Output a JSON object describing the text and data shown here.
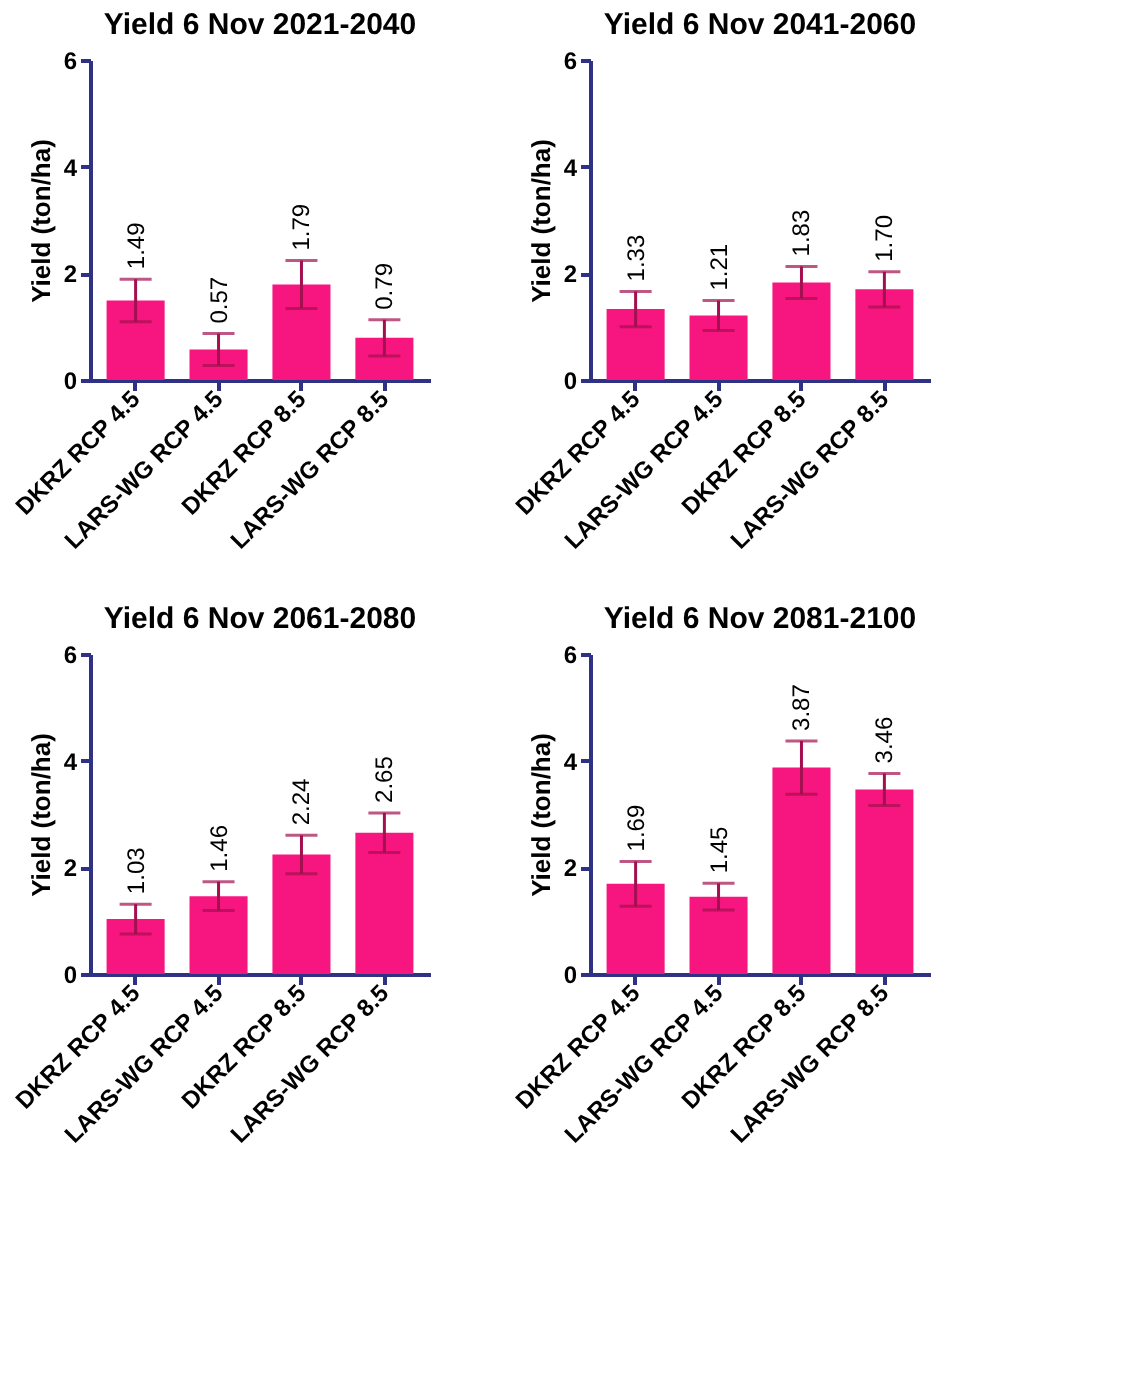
{
  "chart_data": [
    {
      "type": "bar",
      "title": "Yield 6 Nov 2021-2040",
      "ylabel": "Yield (ton/ha)",
      "categories": [
        "DKRZ RCP 4.5",
        "LARS-WG RCP 4.5",
        "DKRZ RCP 8.5",
        "LARS-WG RCP 8.5"
      ],
      "values": [
        1.49,
        0.57,
        1.79,
        0.79
      ],
      "value_labels": [
        "1.49",
        "0.57",
        "1.79",
        "0.79"
      ],
      "errors": [
        0.4,
        0.3,
        0.45,
        0.34
      ],
      "color": "#f7167f",
      "ylim": [
        0,
        6
      ],
      "yticks": [
        0,
        2,
        4,
        6
      ],
      "grid": false
    },
    {
      "type": "bar",
      "title": "Yield 6 Nov 2041-2060",
      "ylabel": "Yield (ton/ha)",
      "categories": [
        "DKRZ RCP 4.5",
        "LARS-WG RCP 4.5",
        "DKRZ RCP 8.5",
        "LARS-WG RCP 8.5"
      ],
      "values": [
        1.33,
        1.21,
        1.83,
        1.7
      ],
      "value_labels": [
        "1.33",
        "1.21",
        "1.83",
        "1.70"
      ],
      "errors": [
        0.33,
        0.28,
        0.3,
        0.33
      ],
      "color": "#f7167f",
      "ylim": [
        0,
        6
      ],
      "yticks": [
        0,
        2,
        4,
        6
      ],
      "grid": false
    },
    {
      "type": "bar",
      "title": "Yield 6 Nov 2061-2080",
      "ylabel": "Yield (ton/ha)",
      "categories": [
        "DKRZ RCP 4.5",
        "LARS-WG RCP 4.5",
        "DKRZ RCP 8.5",
        "LARS-WG RCP 8.5"
      ],
      "values": [
        1.03,
        1.46,
        2.24,
        2.65
      ],
      "value_labels": [
        "1.03",
        "1.46",
        "2.24",
        "2.65"
      ],
      "errors": [
        0.28,
        0.27,
        0.36,
        0.37
      ],
      "color": "#f7167f",
      "ylim": [
        0,
        6
      ],
      "yticks": [
        0,
        2,
        4,
        6
      ],
      "grid": false
    },
    {
      "type": "bar",
      "title": "Yield 6 Nov 2081-2100",
      "ylabel": "Yield (ton/ha)",
      "categories": [
        "DKRZ RCP 4.5",
        "LARS-WG RCP 4.5",
        "DKRZ RCP 8.5",
        "LARS-WG RCP 8.5"
      ],
      "values": [
        1.69,
        1.45,
        3.87,
        3.46
      ],
      "value_labels": [
        "1.69",
        "1.45",
        "3.87",
        "3.46"
      ],
      "errors": [
        0.42,
        0.25,
        0.5,
        0.3
      ],
      "color": "#f7167f",
      "ylim": [
        0,
        6
      ],
      "yticks": [
        0,
        2,
        4,
        6
      ],
      "grid": false
    }
  ]
}
